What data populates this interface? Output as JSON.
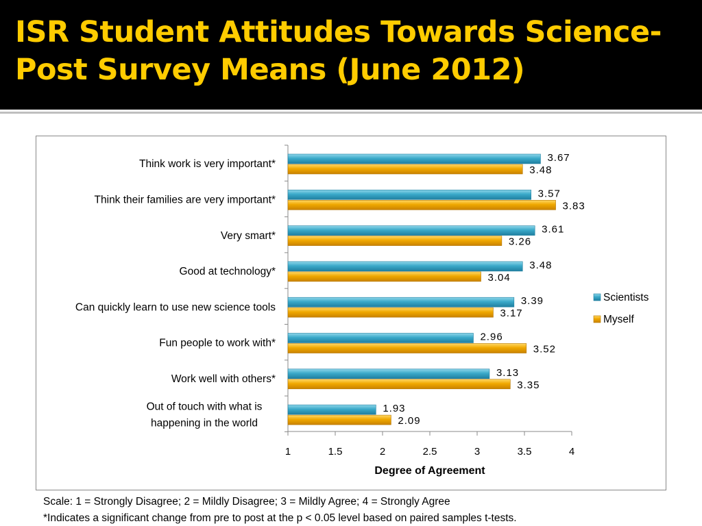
{
  "title": "ISR Student Attitudes Towards Science- Post Survey Means (June 2012)",
  "footnotes": {
    "scale": "Scale: 1 = Strongly Disagree; 2 = Mildly Disagree; 3 = Mildly Agree; 4 = Strongly Agree",
    "significance": "*Indicates a significant change from pre to post at the p < 0.05 level based on paired samples t-tests."
  },
  "colors": {
    "title": "#ffcc00",
    "scientists": "#3aa9c9",
    "myself": "#f0a800"
  },
  "chart_data": {
    "type": "bar",
    "orientation": "horizontal",
    "title": "",
    "xlabel": "Degree of Agreement",
    "ylabel": "",
    "xlim": [
      1,
      4
    ],
    "xticks": [
      1,
      1.5,
      2,
      2.5,
      3,
      3.5,
      4
    ],
    "xtick_labels": [
      "1",
      "1.5",
      "2",
      "2.5",
      "3",
      "3.5",
      "4"
    ],
    "grid": false,
    "legend_position": "right",
    "categories": [
      [
        "Think work is very important*"
      ],
      [
        "Think their families are very important*"
      ],
      [
        "Very smart*"
      ],
      [
        "Good at technology*"
      ],
      [
        "Can quickly learn to use new science tools"
      ],
      [
        "Fun people to work with*"
      ],
      [
        "Work well with others*"
      ],
      [
        "Out of touch with what is",
        "happening in the world"
      ]
    ],
    "series": [
      {
        "name": "Scientists",
        "values": [
          3.67,
          3.57,
          3.61,
          3.48,
          3.39,
          2.96,
          3.13,
          1.93
        ],
        "labels": [
          "3.67",
          "3.57",
          "3.61",
          "3.48",
          "3.39",
          "2.96",
          "3.13",
          "1.93"
        ]
      },
      {
        "name": "Myself",
        "values": [
          3.48,
          3.83,
          3.26,
          3.04,
          3.17,
          3.52,
          3.35,
          2.09
        ],
        "labels": [
          "3.48",
          "3.83",
          "3.26",
          "3.04",
          "3.17",
          "3.52",
          "3.35",
          "2.09"
        ]
      }
    ]
  }
}
